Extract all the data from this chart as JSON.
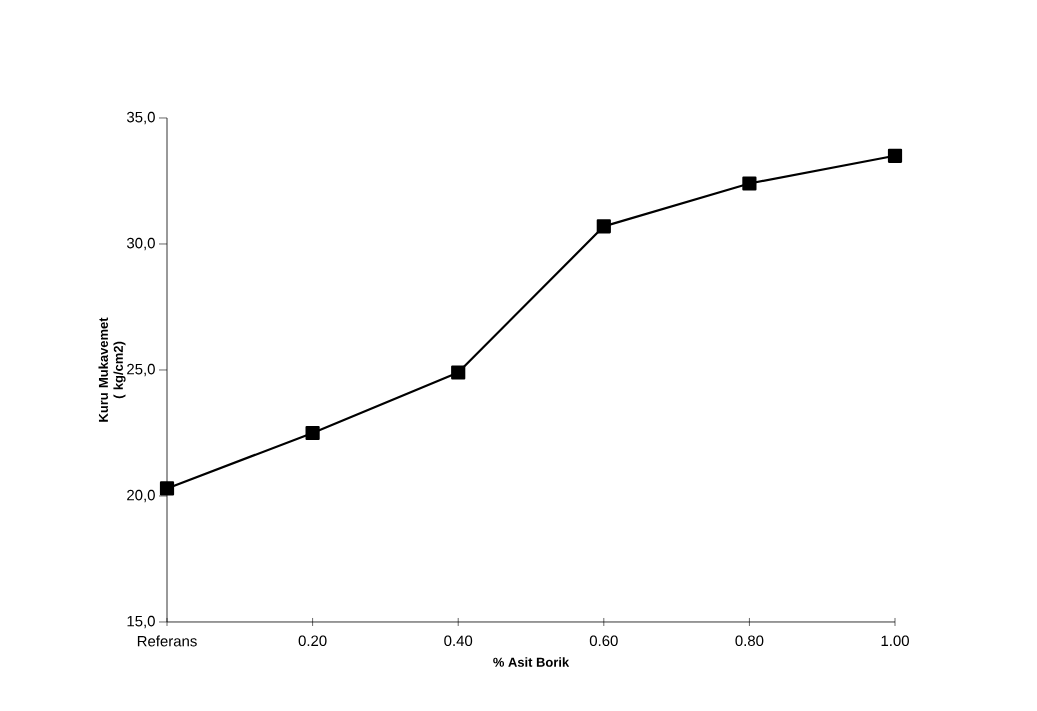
{
  "chart_data": {
    "type": "line",
    "xlabel": "% Asit Borik",
    "ylabel": "Kuru Mukavemet\n( kg/cm2)",
    "categories": [
      "Referans",
      "0.20",
      "0.40",
      "0.60",
      "0.80",
      "1.00"
    ],
    "series": [
      {
        "color": "#000000",
        "values": [
          20.3,
          22.5,
          24.9,
          30.7,
          32.4,
          33.5
        ]
      }
    ],
    "ylim": [
      15,
      35
    ],
    "yticks": [
      {
        "value": 15,
        "label": "15,0"
      },
      {
        "value": 20,
        "label": "20,0"
      },
      {
        "value": 25,
        "label": "25,0"
      },
      {
        "value": 30,
        "label": "30,0"
      },
      {
        "value": 35,
        "label": "35,0"
      }
    ],
    "marker": "square",
    "line_style": "solid"
  }
}
